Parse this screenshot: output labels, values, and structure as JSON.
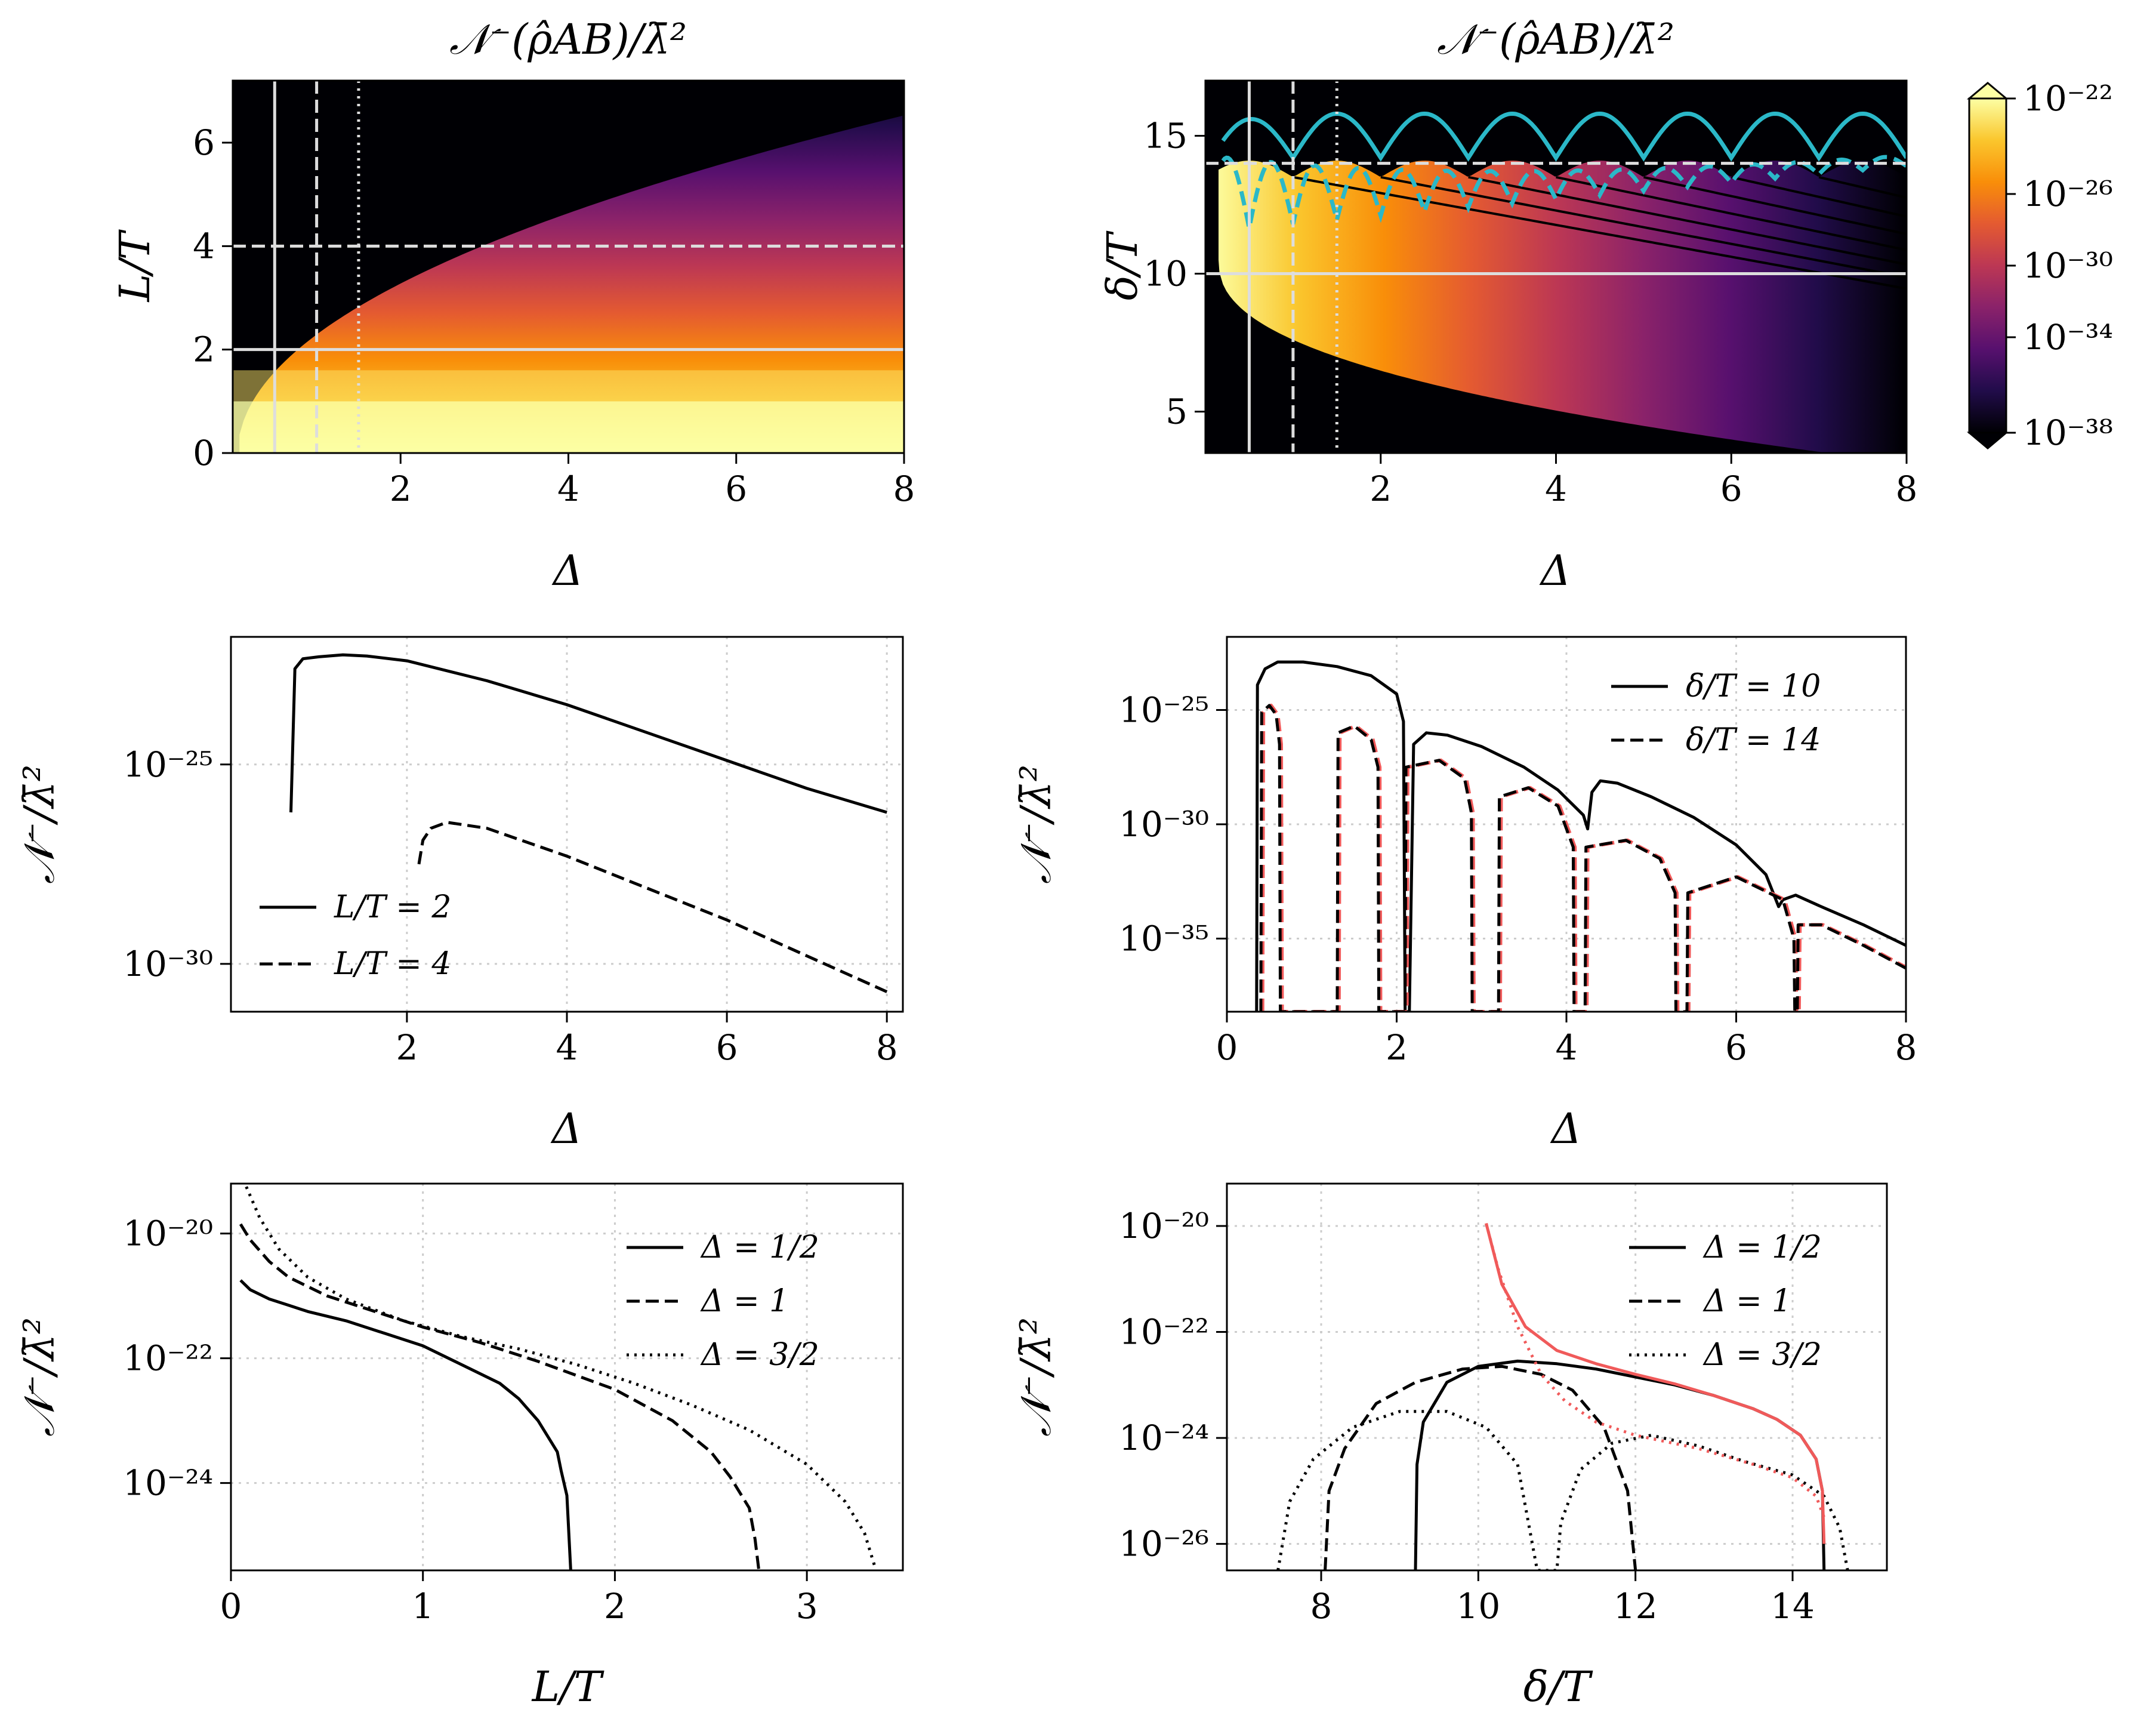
{
  "figure": {
    "colors": {
      "black": "#000000",
      "red": "#f05a5a",
      "cyan": "#2bb8c8",
      "grid": "#cccccc",
      "guide": "#bbbbbb"
    }
  },
  "chart_data": [
    {
      "id": "p1",
      "type": "heatmap",
      "title": "𝒩⁻(ρ̂AB)/λ̄²",
      "xlabel": "Δ",
      "ylabel": "L/T",
      "xlim": [
        0,
        8
      ],
      "ylim": [
        0,
        7.2
      ],
      "xticks": [
        2,
        4,
        6,
        8
      ],
      "yticks": [
        0,
        2,
        4,
        6
      ],
      "xtick_labels": [
        "2",
        "4",
        "6",
        "8"
      ],
      "ytick_labels": [
        "0",
        "2",
        "4",
        "6"
      ],
      "boundary": "L/T ≈ 2.3·sqrt(Δ) − 0.2",
      "guide_lines": [
        {
          "axis": "v",
          "value": 0.5,
          "style": "solid"
        },
        {
          "axis": "v",
          "value": 1,
          "style": "dashed"
        },
        {
          "axis": "v",
          "value": 1.5,
          "style": "dotted"
        },
        {
          "axis": "h",
          "value": 2,
          "style": "solid"
        },
        {
          "axis": "h",
          "value": 4,
          "style": "dashed"
        }
      ]
    },
    {
      "id": "p2",
      "type": "heatmap",
      "title": "𝒩⁻(ρ̂AB)/λ̄²",
      "xlabel": "Δ",
      "ylabel": "δ/T",
      "xlim": [
        0,
        8
      ],
      "ylim": [
        3.5,
        17
      ],
      "xticks": [
        2,
        4,
        6,
        8
      ],
      "yticks": [
        5,
        10,
        15
      ],
      "xtick_labels": [
        "2",
        "4",
        "6",
        "8"
      ],
      "ytick_labels": [
        "5",
        "10",
        "15"
      ],
      "guide_lines": [
        {
          "axis": "v",
          "value": 0.5,
          "style": "solid"
        },
        {
          "axis": "v",
          "value": 1,
          "style": "dashed"
        },
        {
          "axis": "v",
          "value": 1.5,
          "style": "dotted"
        },
        {
          "axis": "h",
          "value": 10,
          "style": "solid"
        },
        {
          "axis": "h",
          "value": 14,
          "style": "dashed"
        }
      ],
      "colorbar": {
        "scale": "log",
        "range": [
          1e-38,
          1e-22
        ],
        "ticks": [
          "10⁻²²",
          "10⁻²⁶",
          "10⁻³⁰",
          "10⁻³⁴",
          "10⁻³⁸"
        ],
        "stops": [
          "#fcffa4",
          "#fac62d",
          "#f98e09",
          "#e45a31",
          "#bc3754",
          "#8a226a",
          "#57106e",
          "#210c4a",
          "#000004"
        ]
      }
    },
    {
      "id": "p3",
      "type": "line",
      "xlabel": "Δ",
      "ylabel": "𝒩⁻/λ̄²",
      "xlim": [
        -0.2,
        8.2
      ],
      "ylim_log10": [
        -31.2,
        -21.8
      ],
      "xticks": [
        2,
        4,
        6,
        8
      ],
      "xtick_labels": [
        "2",
        "4",
        "6",
        "8"
      ],
      "yticks_log10": [
        -25,
        -30
      ],
      "ytick_labels": [
        "10⁻²⁵",
        "10⁻³⁰"
      ],
      "series": [
        {
          "name": "L/T = 2",
          "style": "solid",
          "x": [
            0.55,
            0.6,
            0.7,
            0.9,
            1.2,
            1.5,
            2,
            3,
            4,
            5,
            6,
            7,
            8
          ],
          "log10_y": [
            -26.2,
            -22.6,
            -22.35,
            -22.3,
            -22.25,
            -22.28,
            -22.4,
            -22.9,
            -23.5,
            -24.2,
            -24.9,
            -25.6,
            -26.2
          ]
        },
        {
          "name": "L/T = 4",
          "style": "dashed",
          "x": [
            2.15,
            2.2,
            2.3,
            2.5,
            3,
            4,
            5,
            6,
            7,
            8
          ],
          "log10_y": [
            -27.5,
            -26.9,
            -26.6,
            -26.45,
            -26.6,
            -27.3,
            -28.1,
            -28.9,
            -29.8,
            -30.7
          ]
        }
      ]
    },
    {
      "id": "p4",
      "type": "line",
      "xlabel": "Δ",
      "ylabel": "𝒩⁻/λ̄²",
      "xlim": [
        0,
        8
      ],
      "ylim_log10": [
        -38.2,
        -21.8
      ],
      "xticks": [
        0,
        2,
        4,
        6,
        8
      ],
      "xtick_labels": [
        "0",
        "2",
        "4",
        "6",
        "8"
      ],
      "yticks_log10": [
        -25,
        -30,
        -35
      ],
      "ytick_labels": [
        "10⁻²⁵",
        "10⁻³⁰",
        "10⁻³⁵"
      ],
      "series": [
        {
          "name": "δ/T = 10",
          "style": "solid",
          "color": "black",
          "x": [
            0.35,
            0.36,
            0.45,
            0.6,
            0.9,
            1.3,
            1.7,
            2.0,
            2.08,
            2.1,
            2.15,
            2.2,
            2.35,
            2.6,
            3.0,
            3.5,
            3.9,
            4.2,
            4.25,
            4.3,
            4.4,
            4.6,
            5.0,
            5.5,
            6.0,
            6.35,
            6.5,
            6.55,
            6.7,
            7.0,
            7.5,
            8.0
          ],
          "log10_y": [
            -38.2,
            -23.9,
            -23.2,
            -22.9,
            -22.9,
            -23.1,
            -23.5,
            -24.3,
            -25.5,
            -38.2,
            -38.2,
            -26.5,
            -26.0,
            -26.1,
            -26.6,
            -27.5,
            -28.5,
            -29.6,
            -30.2,
            -28.6,
            -28.1,
            -28.2,
            -28.8,
            -29.7,
            -30.9,
            -32.2,
            -33.6,
            -33.3,
            -33.1,
            -33.6,
            -34.4,
            -35.3
          ]
        },
        {
          "name": "δ/T = 14",
          "style": "dashed",
          "color": "black",
          "ghost_color": "red",
          "x": [
            0.4,
            0.41,
            0.5,
            0.58,
            0.62,
            0.63,
            1.3,
            1.31,
            1.5,
            1.7,
            1.78,
            1.79,
            2.1,
            2.11,
            2.5,
            2.8,
            2.88,
            2.89,
            3.2,
            3.21,
            3.55,
            3.9,
            4.08,
            4.09,
            4.22,
            4.23,
            4.7,
            5.1,
            5.28,
            5.29,
            5.42,
            5.43,
            6.0,
            6.55,
            6.68,
            6.69,
            6.72,
            6.73,
            7.0,
            7.5,
            8.0
          ],
          "log10_y": [
            -38.2,
            -25.1,
            -24.8,
            -25.2,
            -26.5,
            -38.2,
            -38.2,
            -26.0,
            -25.7,
            -26.3,
            -27.5,
            -38.2,
            -38.2,
            -27.5,
            -27.2,
            -28.0,
            -29.5,
            -38.2,
            -38.2,
            -28.8,
            -28.4,
            -29.2,
            -31.0,
            -38.2,
            -38.2,
            -31.0,
            -30.7,
            -31.5,
            -33.0,
            -38.2,
            -38.2,
            -33.0,
            -32.3,
            -33.3,
            -35.0,
            -38.2,
            -38.2,
            -34.4,
            -34.4,
            -35.3,
            -36.3
          ]
        }
      ],
      "legend": [
        "δ/T = 10",
        "δ/T = 14"
      ]
    },
    {
      "id": "p5",
      "type": "line",
      "xlabel": "L/T",
      "ylabel": "𝒩⁻/λ̄²",
      "xlim": [
        0,
        3.5
      ],
      "ylim_log10": [
        -25.4,
        -19.2
      ],
      "xticks": [
        0,
        1,
        2,
        3
      ],
      "xtick_labels": [
        "0",
        "1",
        "2",
        "3"
      ],
      "yticks_log10": [
        -20,
        -22,
        -24
      ],
      "ytick_labels": [
        "10⁻²⁰",
        "10⁻²²",
        "10⁻²⁴"
      ],
      "series": [
        {
          "name": "Δ = 1/2",
          "style": "solid",
          "x": [
            0.05,
            0.1,
            0.2,
            0.3,
            0.4,
            0.6,
            0.8,
            1.0,
            1.2,
            1.4,
            1.5,
            1.6,
            1.7,
            1.72,
            1.75,
            1.77
          ],
          "log10_y": [
            -20.75,
            -20.9,
            -21.05,
            -21.15,
            -21.25,
            -21.4,
            -21.6,
            -21.8,
            -22.1,
            -22.4,
            -22.65,
            -23.0,
            -23.5,
            -23.8,
            -24.2,
            -25.4
          ]
        },
        {
          "name": "Δ = 1",
          "style": "dashed",
          "x": [
            0.05,
            0.1,
            0.2,
            0.3,
            0.5,
            0.8,
            1.0,
            1.3,
            1.6,
            2.0,
            2.3,
            2.5,
            2.6,
            2.7,
            2.73,
            2.75
          ],
          "log10_y": [
            -19.85,
            -20.1,
            -20.45,
            -20.7,
            -21.0,
            -21.3,
            -21.5,
            -21.75,
            -22.05,
            -22.5,
            -23.0,
            -23.5,
            -23.9,
            -24.4,
            -24.9,
            -25.4
          ]
        },
        {
          "name": "Δ = 3/2",
          "style": "dotted",
          "x": [
            0.08,
            0.15,
            0.25,
            0.4,
            0.6,
            0.9,
            1.2,
            1.5,
            1.8,
            2.1,
            2.4,
            2.7,
            3.0,
            3.2,
            3.3,
            3.36
          ],
          "log10_y": [
            -19.25,
            -19.75,
            -20.25,
            -20.7,
            -21.05,
            -21.4,
            -21.65,
            -21.85,
            -22.1,
            -22.4,
            -22.75,
            -23.15,
            -23.7,
            -24.3,
            -24.8,
            -25.4
          ]
        }
      ],
      "legend": [
        "Δ = 1/2",
        "Δ = 1",
        "Δ = 3/2"
      ]
    },
    {
      "id": "p6",
      "type": "line",
      "xlabel": "δ/T",
      "ylabel": "𝒩⁻/λ̄²",
      "xlim": [
        6.8,
        15.2
      ],
      "ylim_log10": [
        -26.5,
        -19.2
      ],
      "xticks": [
        8,
        10,
        12,
        14
      ],
      "xtick_labels": [
        "8",
        "10",
        "12",
        "14"
      ],
      "yticks_log10": [
        -20,
        -22,
        -24,
        -26
      ],
      "ytick_labels": [
        "10⁻²⁰",
        "10⁻²²",
        "10⁻²⁴",
        "10⁻²⁶"
      ],
      "series": [
        {
          "name": "Δ = 1/2",
          "style": "solid",
          "color": "black",
          "x": [
            9.2,
            9.22,
            9.3,
            9.6,
            10,
            10.5,
            11,
            11.5,
            12,
            12.5,
            13,
            13.5,
            13.8,
            14.1,
            14.3,
            14.38,
            14.4
          ],
          "log10_y": [
            -26.5,
            -24.5,
            -23.7,
            -22.95,
            -22.65,
            -22.55,
            -22.6,
            -22.7,
            -22.85,
            -23.0,
            -23.2,
            -23.45,
            -23.65,
            -23.95,
            -24.4,
            -25.0,
            -26.5
          ]
        },
        {
          "name": "Δ = 1",
          "style": "dashed",
          "color": "black",
          "x": [
            8.05,
            8.1,
            8.3,
            8.7,
            9.2,
            9.8,
            10.3,
            10.8,
            11.2,
            11.6,
            11.9,
            12.0
          ],
          "log10_y": [
            -26.5,
            -25.0,
            -24.2,
            -23.35,
            -22.95,
            -22.7,
            -22.65,
            -22.8,
            -23.1,
            -23.8,
            -25.0,
            -26.5
          ]
        },
        {
          "name": "Δ = 3/2",
          "style": "dotted",
          "color": "black",
          "x": [
            7.45,
            7.6,
            7.9,
            8.4,
            9.0,
            9.6,
            10.1,
            10.5,
            10.75,
            10.85,
            11.0,
            11.05,
            11.3,
            11.7,
            12.2,
            12.8,
            13.4,
            14.0,
            14.4,
            14.6,
            14.7
          ],
          "log10_y": [
            -26.5,
            -25.2,
            -24.4,
            -23.8,
            -23.5,
            -23.5,
            -23.8,
            -24.5,
            -26.5,
            -26.5,
            -26.5,
            -25.6,
            -24.6,
            -24.1,
            -23.95,
            -24.15,
            -24.45,
            -24.7,
            -25.1,
            -25.7,
            -26.5
          ]
        },
        {
          "name": "dotted overlay",
          "style": "dotted",
          "color": "red",
          "x": [
            10.1,
            10.25,
            10.5,
            10.8,
            11.1,
            11.5,
            12.0,
            12.8,
            13.5,
            14.0,
            14.3,
            14.4
          ],
          "log10_y": [
            -19.95,
            -20.8,
            -21.9,
            -22.8,
            -23.3,
            -23.7,
            -23.95,
            -24.2,
            -24.5,
            -24.75,
            -25.1,
            -25.5
          ]
        },
        {
          "name": "solid overlay",
          "style": "solid",
          "color": "red",
          "x": [
            10.1,
            10.3,
            10.6,
            11.0,
            11.5,
            12.0,
            12.5,
            13.0,
            13.5,
            13.8,
            14.1,
            14.3,
            14.38,
            14.4
          ],
          "log10_y": [
            -19.95,
            -21.1,
            -21.9,
            -22.35,
            -22.6,
            -22.8,
            -22.98,
            -23.2,
            -23.45,
            -23.65,
            -23.95,
            -24.4,
            -25.0,
            -26.0
          ]
        }
      ],
      "legend": [
        "Δ = 1/2",
        "Δ = 1",
        "Δ = 3/2"
      ]
    }
  ]
}
